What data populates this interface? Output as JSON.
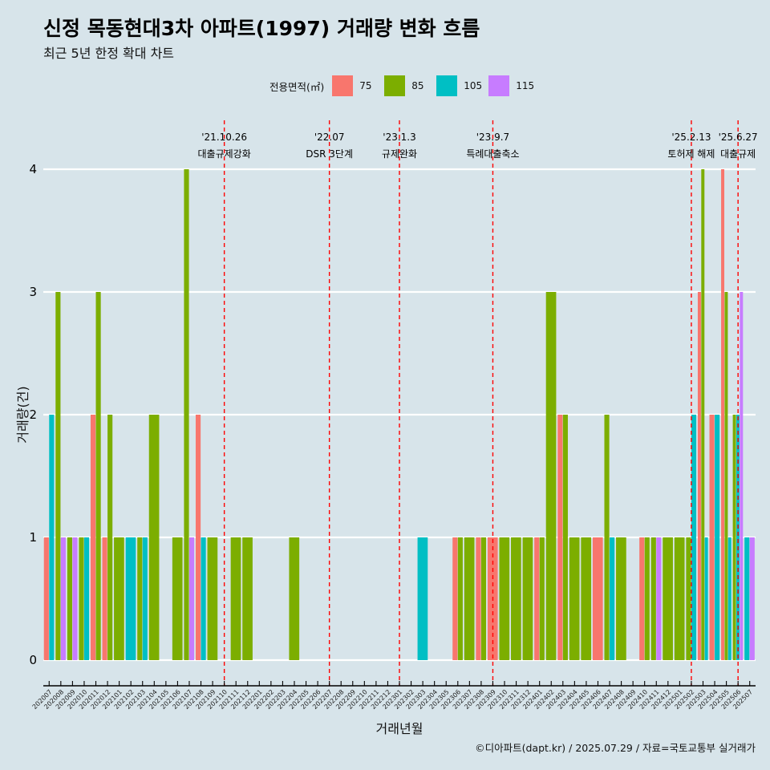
{
  "title": "신정 목동현대3차 아파트(1997) 거래량 변화 흐름",
  "subtitle": "최근 5년 한정 확대 차트",
  "caption": "©디아파트(dapt.kr) / 2025.07.29 / 자료=국토교통부 실거래가",
  "colors": {
    "75": "#f8766d",
    "85": "#7cae00",
    "105": "#00bfc4",
    "115": "#c77cff",
    "background": "#d7e4ea",
    "event_line": "#ff0000"
  },
  "chart_data": {
    "type": "bar",
    "xlabel": "거래년월",
    "ylabel": "거래량(건)",
    "ylim": [
      0,
      4
    ],
    "yticks": [
      0,
      1,
      2,
      3,
      4
    ],
    "legend_title": "전용면적(㎡)",
    "legend_position": "top",
    "categories": [
      "202007",
      "202008",
      "202009",
      "202010",
      "202011",
      "202012",
      "202101",
      "202102",
      "202103",
      "202104",
      "202105",
      "202106",
      "202107",
      "202108",
      "202109",
      "202110",
      "202111",
      "202112",
      "202201",
      "202202",
      "202203",
      "202204",
      "202205",
      "202206",
      "202207",
      "202208",
      "202209",
      "202210",
      "202211",
      "202212",
      "202301",
      "202302",
      "202303",
      "202304",
      "202305",
      "202306",
      "202307",
      "202308",
      "202309",
      "202310",
      "202311",
      "202312",
      "202401",
      "202402",
      "202403",
      "202404",
      "202405",
      "202406",
      "202407",
      "202408",
      "202409",
      "202410",
      "202411",
      "202412",
      "202501",
      "202502",
      "202503",
      "202504",
      "202505",
      "202506",
      "202507"
    ],
    "series": [
      {
        "name": "75",
        "values": [
          1,
          0,
          0,
          0,
          2,
          1,
          0,
          0,
          0,
          0,
          0,
          0,
          0,
          2,
          0,
          0,
          0,
          0,
          0,
          0,
          0,
          0,
          0,
          0,
          0,
          0,
          0,
          0,
          0,
          0,
          0,
          0,
          0,
          0,
          0,
          1,
          0,
          1,
          1,
          0,
          0,
          0,
          1,
          0,
          2,
          0,
          0,
          1,
          0,
          0,
          0,
          1,
          0,
          0,
          0,
          0,
          3,
          2,
          4,
          0,
          0
        ]
      },
      {
        "name": "85",
        "values": [
          0,
          3,
          1,
          1,
          3,
          2,
          1,
          0,
          1,
          2,
          0,
          1,
          4,
          0,
          1,
          0,
          1,
          1,
          0,
          0,
          0,
          1,
          0,
          0,
          0,
          0,
          0,
          0,
          0,
          0,
          0,
          0,
          0,
          0,
          0,
          1,
          1,
          1,
          0,
          1,
          1,
          1,
          1,
          3,
          2,
          1,
          1,
          0,
          2,
          1,
          0,
          1,
          1,
          1,
          1,
          1,
          4,
          0,
          3,
          2,
          0
        ]
      },
      {
        "name": "105",
        "values": [
          2,
          0,
          0,
          1,
          0,
          0,
          0,
          1,
          1,
          0,
          0,
          0,
          0,
          1,
          0,
          0,
          0,
          0,
          0,
          0,
          0,
          0,
          0,
          0,
          0,
          0,
          0,
          0,
          0,
          0,
          0,
          0,
          1,
          0,
          0,
          0,
          0,
          0,
          0,
          0,
          0,
          0,
          0,
          0,
          0,
          0,
          0,
          0,
          1,
          0,
          0,
          0,
          0,
          0,
          0,
          2,
          1,
          2,
          1,
          2,
          1
        ]
      },
      {
        "name": "115",
        "values": [
          0,
          1,
          1,
          0,
          0,
          0,
          0,
          0,
          0,
          0,
          0,
          0,
          1,
          0,
          0,
          0,
          0,
          0,
          0,
          0,
          0,
          0,
          0,
          0,
          0,
          0,
          0,
          0,
          0,
          0,
          0,
          0,
          0,
          0,
          0,
          0,
          0,
          0,
          0,
          0,
          0,
          0,
          0,
          0,
          0,
          0,
          0,
          0,
          0,
          0,
          0,
          0,
          1,
          0,
          0,
          0,
          0,
          0,
          0,
          3,
          1
        ]
      }
    ],
    "events": [
      {
        "date": "202110",
        "label_top": "'21.10.26",
        "label_bottom": "대출규제강화"
      },
      {
        "date": "202207",
        "label_top": "'22.07",
        "label_bottom": "DSR 3단계"
      },
      {
        "date": "202301",
        "label_top": "'23.1.3",
        "label_bottom": "규제완화"
      },
      {
        "date": "202309",
        "label_top": "'23.9.7",
        "label_bottom": "특례대출축소"
      },
      {
        "date": "202502",
        "label_top": "'25.2.13",
        "label_bottom": "토허제 해제"
      },
      {
        "date": "202506",
        "label_top": "'25.6.27",
        "label_bottom": "대출규제"
      }
    ]
  }
}
